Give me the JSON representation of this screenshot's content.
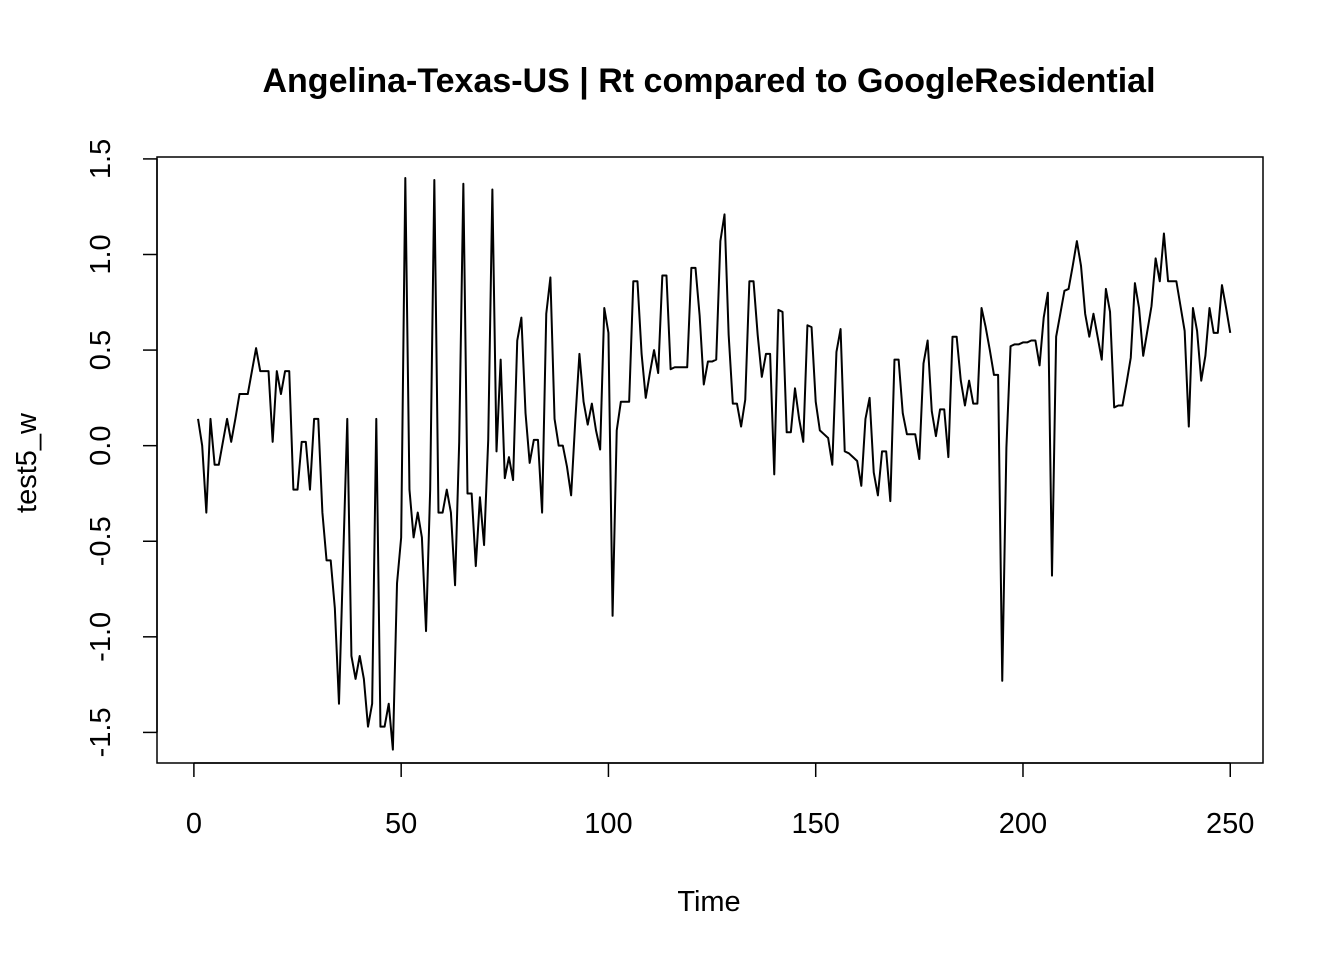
{
  "chart_data": {
    "type": "line",
    "title": "Angelina-Texas-US | Rt compared to GoogleResidential",
    "xlabel": "Time",
    "ylabel": "test5_w",
    "xlim": [
      -8.9,
      257.9
    ],
    "ylim": [
      -1.66,
      1.51
    ],
    "xticks": [
      0,
      50,
      100,
      150,
      200,
      250
    ],
    "yticks": [
      -1.5,
      -1.0,
      -0.5,
      0.0,
      0.5,
      1.0,
      1.5
    ],
    "xtick_labels": [
      "0",
      "50",
      "100",
      "150",
      "200",
      "250"
    ],
    "ytick_labels": [
      "-1.5",
      "-1.0",
      "-0.5",
      "0.0",
      "0.5",
      "1.0",
      "1.5"
    ],
    "grid": false,
    "line_color": "#000000",
    "series": [
      {
        "x_start": 1,
        "x_step": 1,
        "values": [
          0.14,
          0.0,
          -0.35,
          0.14,
          -0.1,
          -0.1,
          0.02,
          0.14,
          0.02,
          0.14,
          0.27,
          0.27,
          0.27,
          0.39,
          0.51,
          0.39,
          0.39,
          0.39,
          0.02,
          0.39,
          0.27,
          0.39,
          0.39,
          -0.23,
          -0.23,
          0.02,
          0.02,
          -0.23,
          0.14,
          0.14,
          -0.35,
          -0.6,
          -0.6,
          -0.85,
          -1.35,
          -0.6,
          0.14,
          -1.1,
          -1.22,
          -1.1,
          -1.22,
          -1.47,
          -1.35,
          0.14,
          -1.47,
          -1.47,
          -1.35,
          -1.59,
          -0.72,
          -0.48,
          1.4,
          -0.23,
          -0.48,
          -0.35,
          -0.48,
          -0.97,
          -0.23,
          1.39,
          -0.35,
          -0.35,
          -0.23,
          -0.35,
          -0.73,
          0.02,
          1.37,
          -0.25,
          -0.25,
          -0.63,
          -0.27,
          -0.52,
          0.03,
          1.34,
          -0.03,
          0.45,
          -0.17,
          -0.06,
          -0.18,
          0.55,
          0.67,
          0.17,
          -0.09,
          0.03,
          0.03,
          -0.35,
          0.69,
          0.88,
          0.14,
          0.0,
          0.0,
          -0.11,
          -0.26,
          0.13,
          0.48,
          0.23,
          0.11,
          0.22,
          0.08,
          -0.02,
          0.72,
          0.59,
          -0.89,
          0.08,
          0.23,
          0.23,
          0.23,
          0.86,
          0.86,
          0.48,
          0.25,
          0.38,
          0.5,
          0.38,
          0.89,
          0.89,
          0.4,
          0.41,
          0.41,
          0.41,
          0.41,
          0.93,
          0.93,
          0.68,
          0.32,
          0.44,
          0.44,
          0.45,
          1.07,
          1.21,
          0.58,
          0.22,
          0.22,
          0.1,
          0.24,
          0.86,
          0.86,
          0.58,
          0.36,
          0.48,
          0.48,
          -0.15,
          0.71,
          0.7,
          0.07,
          0.07,
          0.3,
          0.14,
          0.02,
          0.63,
          0.62,
          0.23,
          0.08,
          0.06,
          0.04,
          -0.1,
          0.49,
          0.61,
          -0.03,
          -0.04,
          -0.06,
          -0.08,
          -0.21,
          0.14,
          0.25,
          -0.14,
          -0.26,
          -0.03,
          -0.03,
          -0.29,
          0.45,
          0.45,
          0.17,
          0.06,
          0.06,
          0.06,
          -0.07,
          0.43,
          0.55,
          0.18,
          0.05,
          0.19,
          0.19,
          -0.06,
          0.57,
          0.57,
          0.34,
          0.21,
          0.34,
          0.22,
          0.22,
          0.72,
          0.62,
          0.5,
          0.37,
          0.37,
          -1.23,
          -0.01,
          0.52,
          0.53,
          0.53,
          0.54,
          0.54,
          0.55,
          0.55,
          0.42,
          0.67,
          0.8,
          -0.68,
          0.57,
          0.69,
          0.81,
          0.82,
          0.94,
          1.07,
          0.94,
          0.69,
          0.57,
          0.69,
          0.57,
          0.45,
          0.82,
          0.7,
          0.2,
          0.21,
          0.21,
          0.33,
          0.46,
          0.85,
          0.72,
          0.47,
          0.6,
          0.73,
          0.98,
          0.86,
          1.11,
          0.86,
          0.86,
          0.86,
          0.73,
          0.6,
          0.1,
          0.72,
          0.6,
          0.34,
          0.47,
          0.72,
          0.59,
          0.59,
          0.84,
          0.72,
          0.59
        ]
      }
    ]
  }
}
